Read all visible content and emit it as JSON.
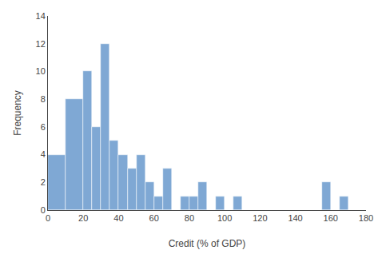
{
  "chart_data": {
    "type": "histogram",
    "bins": [
      0,
      10,
      20,
      25,
      30,
      35,
      40,
      45,
      50,
      55,
      60,
      65,
      70,
      75,
      80,
      85,
      90,
      95,
      100,
      105,
      110,
      115,
      120,
      130,
      140,
      150,
      155,
      160,
      165,
      170,
      175,
      180
    ],
    "values": [
      4,
      8,
      10,
      6,
      12,
      5,
      4,
      3,
      4,
      2,
      1,
      3,
      0,
      1,
      1,
      2,
      0,
      1,
      0,
      1,
      0,
      0,
      0,
      0,
      0,
      0,
      2,
      0,
      1,
      0,
      0
    ],
    "color": "#7fa8d4",
    "xlabel": "Credit (% of GDP)",
    "ylabel": "Frequency",
    "xlim": [
      0,
      180
    ],
    "ylim": [
      0,
      14
    ],
    "xticks": [
      0,
      20,
      40,
      60,
      80,
      100,
      120,
      140,
      160,
      180
    ],
    "yticks": [
      0,
      2,
      4,
      6,
      8,
      10,
      12,
      14
    ],
    "grid": false
  }
}
